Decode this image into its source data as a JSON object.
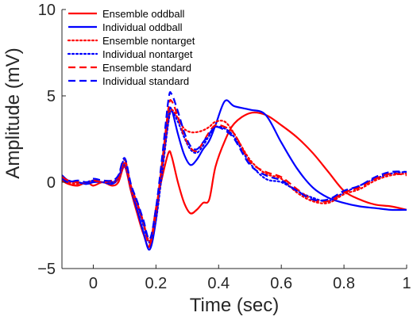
{
  "chart_data": {
    "type": "line",
    "xlabel": "Time (sec)",
    "ylabel": "Amplitude (mV)",
    "xlim": [
      -0.1,
      1.0
    ],
    "ylim": [
      -5,
      10
    ],
    "x_ticks": [
      0,
      0.2,
      0.4,
      0.6,
      0.8,
      1
    ],
    "x_tick_labels": [
      "0",
      "0.2",
      "0.4",
      "0.6",
      "0.8",
      "1"
    ],
    "y_ticks": [
      -5,
      0,
      5,
      10
    ],
    "y_tick_labels": [
      "−5",
      "0",
      "5",
      "10"
    ],
    "grid": false,
    "legend_position": "top-left",
    "series": [
      {
        "name": "Ensemble oddball",
        "color": "#ff0000",
        "dash": "solid",
        "x": [
          -0.1,
          -0.08,
          -0.05,
          -0.02,
          0,
          0.03,
          0.06,
          0.08,
          0.1,
          0.12,
          0.14,
          0.16,
          0.18,
          0.2,
          0.22,
          0.24,
          0.25,
          0.27,
          0.29,
          0.31,
          0.33,
          0.35,
          0.37,
          0.39,
          0.42,
          0.45,
          0.5,
          0.55,
          0.6,
          0.65,
          0.7,
          0.75,
          0.8,
          0.85,
          0.9,
          0.95,
          1.0
        ],
        "y": [
          0.1,
          -0.1,
          -0.2,
          0,
          -0.2,
          0,
          -0.2,
          0,
          0.9,
          -0.5,
          -1.8,
          -3.0,
          -3.7,
          -1.5,
          0.3,
          1.7,
          1.5,
          0,
          -1.2,
          -1.8,
          -1.6,
          -1.2,
          -1.0,
          0.9,
          2.4,
          3.4,
          4.0,
          3.9,
          3.3,
          2.6,
          1.7,
          0.6,
          -0.5,
          -1.0,
          -1.3,
          -1.4,
          -1.6
        ]
      },
      {
        "name": "Individual oddball",
        "color": "#0000ff",
        "dash": "solid",
        "x": [
          -0.1,
          -0.08,
          -0.05,
          -0.02,
          0,
          0.03,
          0.06,
          0.08,
          0.1,
          0.12,
          0.14,
          0.16,
          0.18,
          0.2,
          0.22,
          0.24,
          0.25,
          0.27,
          0.29,
          0.31,
          0.33,
          0.35,
          0.37,
          0.39,
          0.42,
          0.45,
          0.5,
          0.55,
          0.6,
          0.65,
          0.7,
          0.75,
          0.8,
          0.85,
          0.9,
          0.95,
          1.0
        ],
        "y": [
          0.4,
          0.1,
          0,
          -0.1,
          0,
          0,
          -0.1,
          0.2,
          1.0,
          -0.4,
          -1.6,
          -2.9,
          -3.9,
          -2.2,
          1.0,
          3.9,
          4.2,
          2.8,
          1.6,
          1.0,
          1.3,
          1.9,
          2.4,
          3.3,
          4.7,
          4.4,
          4.2,
          3.9,
          2.3,
          0.8,
          -0.3,
          -0.9,
          -1.2,
          -1.4,
          -1.5,
          -1.6,
          -1.6
        ]
      },
      {
        "name": "Ensemble nontarget",
        "color": "#ff0000",
        "dash": "dotted",
        "x": [
          -0.1,
          -0.08,
          -0.05,
          -0.02,
          0,
          0.03,
          0.06,
          0.08,
          0.1,
          0.12,
          0.14,
          0.16,
          0.18,
          0.2,
          0.22,
          0.24,
          0.25,
          0.27,
          0.29,
          0.31,
          0.33,
          0.35,
          0.37,
          0.39,
          0.42,
          0.45,
          0.5,
          0.55,
          0.6,
          0.65,
          0.7,
          0.75,
          0.8,
          0.85,
          0.9,
          0.95,
          1.0
        ],
        "y": [
          0.2,
          0,
          -0.1,
          0,
          0.1,
          0,
          0,
          0.2,
          1.1,
          -0.4,
          -1.3,
          -2.4,
          -3.4,
          -2.0,
          0.8,
          3.6,
          4.2,
          3.7,
          3.1,
          2.9,
          2.9,
          3.0,
          3.2,
          3.5,
          3.5,
          2.8,
          1.3,
          0.5,
          0.2,
          -0.6,
          -1.1,
          -1.2,
          -0.7,
          -0.4,
          0.1,
          0.4,
          0.5
        ]
      },
      {
        "name": "Individual nontarget",
        "color": "#0000ff",
        "dash": "dotted",
        "x": [
          -0.1,
          -0.08,
          -0.05,
          -0.02,
          0,
          0.03,
          0.06,
          0.08,
          0.1,
          0.12,
          0.14,
          0.16,
          0.18,
          0.2,
          0.22,
          0.24,
          0.25,
          0.27,
          0.29,
          0.31,
          0.33,
          0.35,
          0.37,
          0.39,
          0.42,
          0.45,
          0.5,
          0.55,
          0.6,
          0.65,
          0.7,
          0.75,
          0.8,
          0.85,
          0.9,
          0.95,
          1.0
        ],
        "y": [
          0.3,
          0.1,
          0,
          -0.1,
          0.1,
          0,
          0,
          0.3,
          1.3,
          -0.2,
          -1.2,
          -2.5,
          -3.5,
          -2.2,
          0.6,
          3.5,
          4.1,
          3.5,
          2.6,
          1.9,
          1.7,
          2.1,
          2.7,
          3.2,
          3.1,
          2.6,
          1.1,
          0.2,
          0,
          -0.5,
          -0.9,
          -1.1,
          -0.6,
          -0.2,
          0.2,
          0.5,
          0.6
        ]
      },
      {
        "name": "Ensemble standard",
        "color": "#ff0000",
        "dash": "dashed",
        "x": [
          -0.1,
          -0.08,
          -0.05,
          -0.02,
          0,
          0.03,
          0.06,
          0.08,
          0.1,
          0.12,
          0.14,
          0.16,
          0.18,
          0.2,
          0.22,
          0.24,
          0.25,
          0.27,
          0.29,
          0.31,
          0.33,
          0.35,
          0.37,
          0.39,
          0.42,
          0.45,
          0.5,
          0.55,
          0.6,
          0.65,
          0.7,
          0.75,
          0.8,
          0.85,
          0.9,
          0.95,
          1.0
        ],
        "y": [
          0.3,
          0.1,
          0,
          0,
          0.1,
          0,
          0.1,
          0.3,
          1.3,
          -0.2,
          -1.2,
          -2.3,
          -3.6,
          -1.7,
          1.2,
          4.3,
          4.7,
          3.8,
          2.7,
          2.0,
          1.8,
          2.3,
          2.9,
          3.3,
          3.2,
          2.8,
          1.2,
          0.6,
          0.3,
          -0.4,
          -1.0,
          -1.1,
          -0.6,
          -0.3,
          0.2,
          0.5,
          0.4
        ]
      },
      {
        "name": "Individual standard",
        "color": "#0000ff",
        "dash": "dashed",
        "x": [
          -0.1,
          -0.08,
          -0.05,
          -0.02,
          0,
          0.03,
          0.06,
          0.08,
          0.1,
          0.12,
          0.14,
          0.16,
          0.18,
          0.2,
          0.22,
          0.24,
          0.25,
          0.27,
          0.29,
          0.31,
          0.33,
          0.35,
          0.37,
          0.39,
          0.42,
          0.45,
          0.5,
          0.55,
          0.6,
          0.65,
          0.7,
          0.75,
          0.8,
          0.85,
          0.9,
          0.95,
          1.0
        ],
        "y": [
          0.2,
          0,
          0.1,
          0,
          0.2,
          0.1,
          0.1,
          0.4,
          1.4,
          -0.1,
          -1.1,
          -2.2,
          -3.3,
          -1.5,
          1.5,
          4.8,
          5.1,
          4.1,
          2.9,
          2.1,
          1.9,
          2.3,
          2.8,
          3.2,
          3.0,
          2.5,
          1.0,
          0.4,
          0.1,
          -0.5,
          -1.0,
          -1.0,
          -0.5,
          -0.2,
          0.3,
          0.6,
          0.6
        ]
      }
    ]
  }
}
